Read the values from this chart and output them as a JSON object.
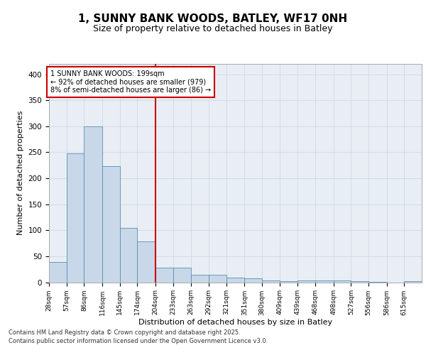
{
  "title_line1": "1, SUNNY BANK WOODS, BATLEY, WF17 0NH",
  "title_line2": "Size of property relative to detached houses in Batley",
  "xlabel": "Distribution of detached houses by size in Batley",
  "ylabel": "Number of detached properties",
  "bar_edges": [
    28,
    57,
    86,
    116,
    145,
    174,
    204,
    233,
    263,
    292,
    321,
    351,
    380,
    409,
    439,
    468,
    498,
    527,
    556,
    586,
    615
  ],
  "bar_heights": [
    39,
    248,
    300,
    224,
    105,
    78,
    28,
    28,
    15,
    15,
    9,
    8,
    4,
    2,
    3,
    3,
    3,
    2,
    1,
    0,
    2
  ],
  "bar_color": "#c8d8e8",
  "bar_edge_color": "#5b8db8",
  "ylim": [
    0,
    420
  ],
  "yticks": [
    0,
    50,
    100,
    150,
    200,
    250,
    300,
    350,
    400
  ],
  "property_line_x": 204,
  "annotation_text": "1 SUNNY BANK WOODS: 199sqm\n← 92% of detached houses are smaller (979)\n8% of semi-detached houses are larger (86) →",
  "annotation_box_color": "#ffffff",
  "annotation_box_edgecolor": "#cc0000",
  "property_line_color": "#cc0000",
  "grid_color": "#d0d8e0",
  "background_color": "#e8eef4",
  "footer_line1": "Contains HM Land Registry data © Crown copyright and database right 2025.",
  "footer_line2": "Contains public sector information licensed under the Open Government Licence v3.0.",
  "tick_label_fontsize": 6.5,
  "axis_label_fontsize": 8,
  "title_fontsize1": 11,
  "title_fontsize2": 9,
  "annotation_fontsize": 7,
  "footer_fontsize": 6
}
